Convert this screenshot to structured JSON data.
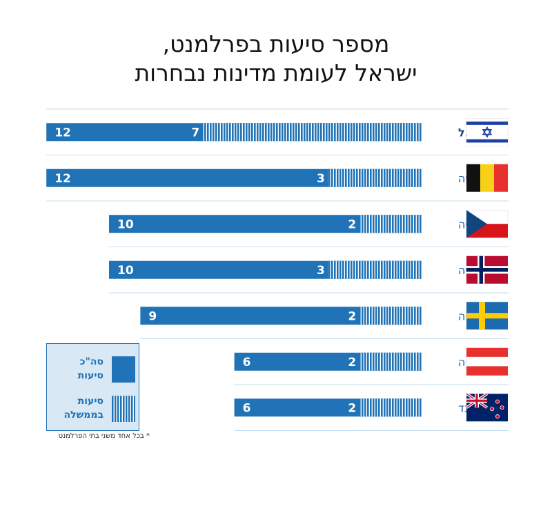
{
  "title_line1": "מספר סיעות בפרלמנט,",
  "title_line2": "ישראל לעומת מדינות נבחרות",
  "legend": {
    "total_line1": "סה\"כ",
    "total_line2": "סיעות",
    "gov_line1": "סיעות",
    "gov_line2": "בממשלה"
  },
  "footnote": "* בכל אחד משני בתי הפרלמנט",
  "colors": {
    "bar": "#1f73b6",
    "separator": "#c5dcee",
    "legend_bg": "#d9e8f5",
    "label_highlight": "#1a3f7a",
    "label_normal": "#1f5f9c"
  },
  "chart_data": {
    "type": "bar",
    "orientation": "horizontal",
    "title": "מספר סיעות בפרלמנט, ישראל לעומת מדינות נבחרות",
    "categories": [
      "ישראל",
      "בלגיה",
      "צ'כיה",
      "נורבגיה",
      "שוודיה",
      "אוסטריה",
      "ניו זילנד"
    ],
    "highlight": "ישראל",
    "series": [
      {
        "name": "סה\"כ סיעות",
        "values": [
          12,
          12,
          10,
          10,
          9,
          6,
          6
        ],
        "fill": "solid"
      },
      {
        "name": "סיעות בממשלה",
        "values": [
          7,
          3,
          2,
          3,
          2,
          2,
          2
        ],
        "fill": "striped"
      }
    ],
    "flags": [
      "israel-flag",
      "belgium-flag",
      "czech-flag",
      "norway-flag",
      "sweden-flag",
      "austria-flag",
      "new-zealand-flag"
    ],
    "xlim": [
      0,
      12
    ],
    "grid": false
  }
}
